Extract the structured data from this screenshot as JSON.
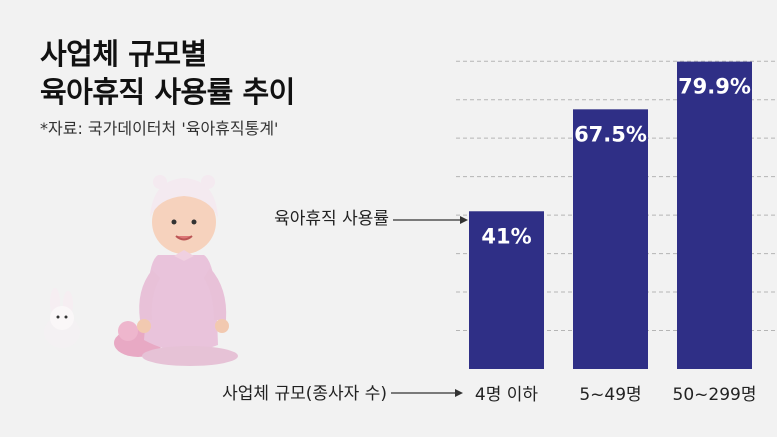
{
  "header": {
    "title_line1": "사업체 규모별",
    "title_line2": "육아휴직 사용률 추이",
    "source": "*자료: 국가데이터처 '육아휴직통계'"
  },
  "annotations": {
    "series_label": "육아휴직 사용률",
    "axis_label": "사업체 규모(종사자 수)"
  },
  "colors": {
    "bar": "#2f2f86",
    "grid": "#b5b5b5",
    "background": "#f2f2f2"
  },
  "chart_data": {
    "type": "bar",
    "categories": [
      "4명 이하",
      "5~49명",
      "50~299명"
    ],
    "values": [
      41,
      67.5,
      79.9
    ],
    "value_labels": [
      "41%",
      "67.5%",
      "79.9%"
    ],
    "ylim": [
      0,
      85
    ],
    "grid": true
  }
}
